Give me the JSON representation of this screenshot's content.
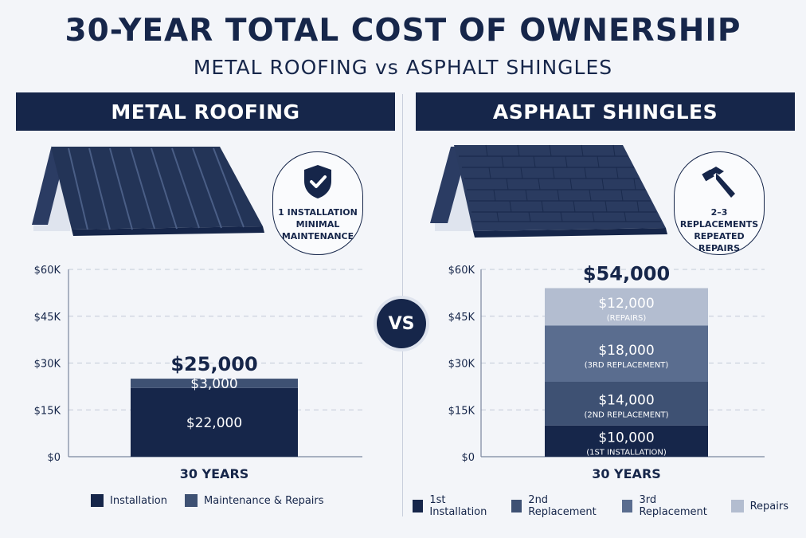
{
  "title": "30-YEAR TOTAL COST OF OWNERSHIP",
  "subtitle": "METAL ROOFING vs ASPHALT SHINGLES",
  "vs_label": "VS",
  "panels": {
    "metal": {
      "header": "METAL ROOFING",
      "badge_icon": "shield-check-icon",
      "badge_lines": [
        "1 INSTALLATION",
        "MINIMAL",
        "MAINTENANCE"
      ]
    },
    "asphalt": {
      "header": "ASPHALT SHINGLES",
      "badge_icon": "hammer-icon",
      "badge_lines": [
        "2–3 REPLACEMENTS",
        "REPEATED",
        "REPAIRS"
      ]
    }
  },
  "colors": {
    "navy": "#16264a",
    "slate": "#3e5173",
    "steel": "#5a6d8f",
    "light": "#b3bdd0"
  },
  "chart_data": [
    {
      "type": "bar",
      "stacked": true,
      "categories": [
        "30 YEARS"
      ],
      "ylim": [
        0,
        60000
      ],
      "yticks": [
        0,
        15000,
        30000,
        45000,
        60000
      ],
      "ytick_labels": [
        "$0",
        "$15K",
        "$30K",
        "$45K",
        "$60K"
      ],
      "grid": true,
      "total_label": "$25,000",
      "series": [
        {
          "name": "Installation",
          "values": [
            22000
          ],
          "label": "$22,000",
          "sublabel": "",
          "color": "#16264a"
        },
        {
          "name": "Maintenance & Repairs",
          "values": [
            3000
          ],
          "label": "$3,000",
          "sublabel": "",
          "color": "#3e5173"
        }
      ],
      "legend": "bottom"
    },
    {
      "type": "bar",
      "stacked": true,
      "categories": [
        "30 YEARS"
      ],
      "ylim": [
        0,
        60000
      ],
      "yticks": [
        0,
        15000,
        30000,
        45000,
        60000
      ],
      "ytick_labels": [
        "$0",
        "$15K",
        "$30K",
        "$45K",
        "$60K"
      ],
      "grid": true,
      "total_label": "$54,000",
      "series": [
        {
          "name": "1st Installation",
          "values": [
            10000
          ],
          "label": "$10,000",
          "sublabel": "(1ST INSTALLATION)",
          "color": "#16264a"
        },
        {
          "name": "2nd Replacement",
          "values": [
            14000
          ],
          "label": "$14,000",
          "sublabel": "(2ND REPLACEMENT)",
          "color": "#3e5173"
        },
        {
          "name": "3rd Replacement",
          "values": [
            18000
          ],
          "label": "$18,000",
          "sublabel": "(3RD REPLACEMENT)",
          "color": "#5a6d8f"
        },
        {
          "name": "Repairs",
          "values": [
            12000
          ],
          "label": "$12,000",
          "sublabel": "(REPAIRS)",
          "color": "#b3bdd0"
        }
      ],
      "legend": "bottom"
    }
  ]
}
